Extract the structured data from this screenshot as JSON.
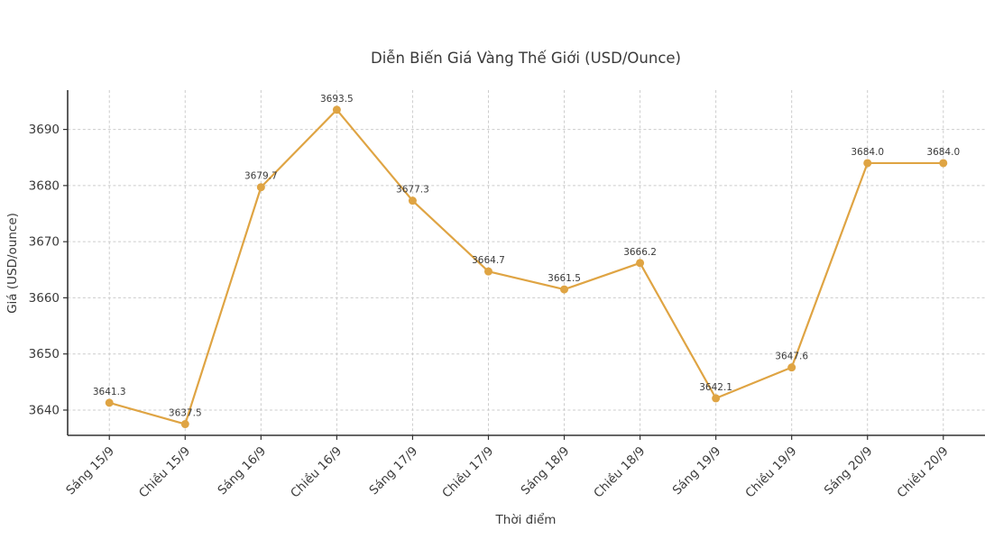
{
  "chart_data": {
    "type": "line",
    "title": "Diễn Biến Giá Vàng Thế Giới (USD/Ounce)",
    "xlabel": "Thời điểm",
    "ylabel": "Giá (USD/ounce)",
    "categories": [
      "Sáng 15/9",
      "Chiều 15/9",
      "Sáng 16/9",
      "Chiều 16/9",
      "Sáng 17/9",
      "Chiều 17/9",
      "Sáng 18/9",
      "Chiều 18/9",
      "Sáng 19/9",
      "Chiều 19/9",
      "Sáng 20/9",
      "Chiều 20/9"
    ],
    "values": [
      3641.3,
      3637.5,
      3679.7,
      3693.5,
      3677.3,
      3664.7,
      3661.5,
      3666.2,
      3642.1,
      3647.6,
      3684.0,
      3684.0
    ],
    "point_labels": [
      "3641.3",
      "3637.5",
      "3679.7",
      "3693.5",
      "3677.3",
      "3664.7",
      "3661.5",
      "3666.2",
      "3642.1",
      "3647.6",
      "3684.0",
      "3684.0"
    ],
    "yticks": [
      3640,
      3650,
      3660,
      3670,
      3680,
      3690
    ],
    "ylim": [
      3635.5,
      3697.0
    ],
    "grid": true,
    "legend": "none",
    "line_color": "#DFA443",
    "marker_color": "#DFA443",
    "grid_color": "#cccccc",
    "axis_color": "#333333",
    "text_color": "#3a3a3a",
    "background": "#ffffff"
  }
}
